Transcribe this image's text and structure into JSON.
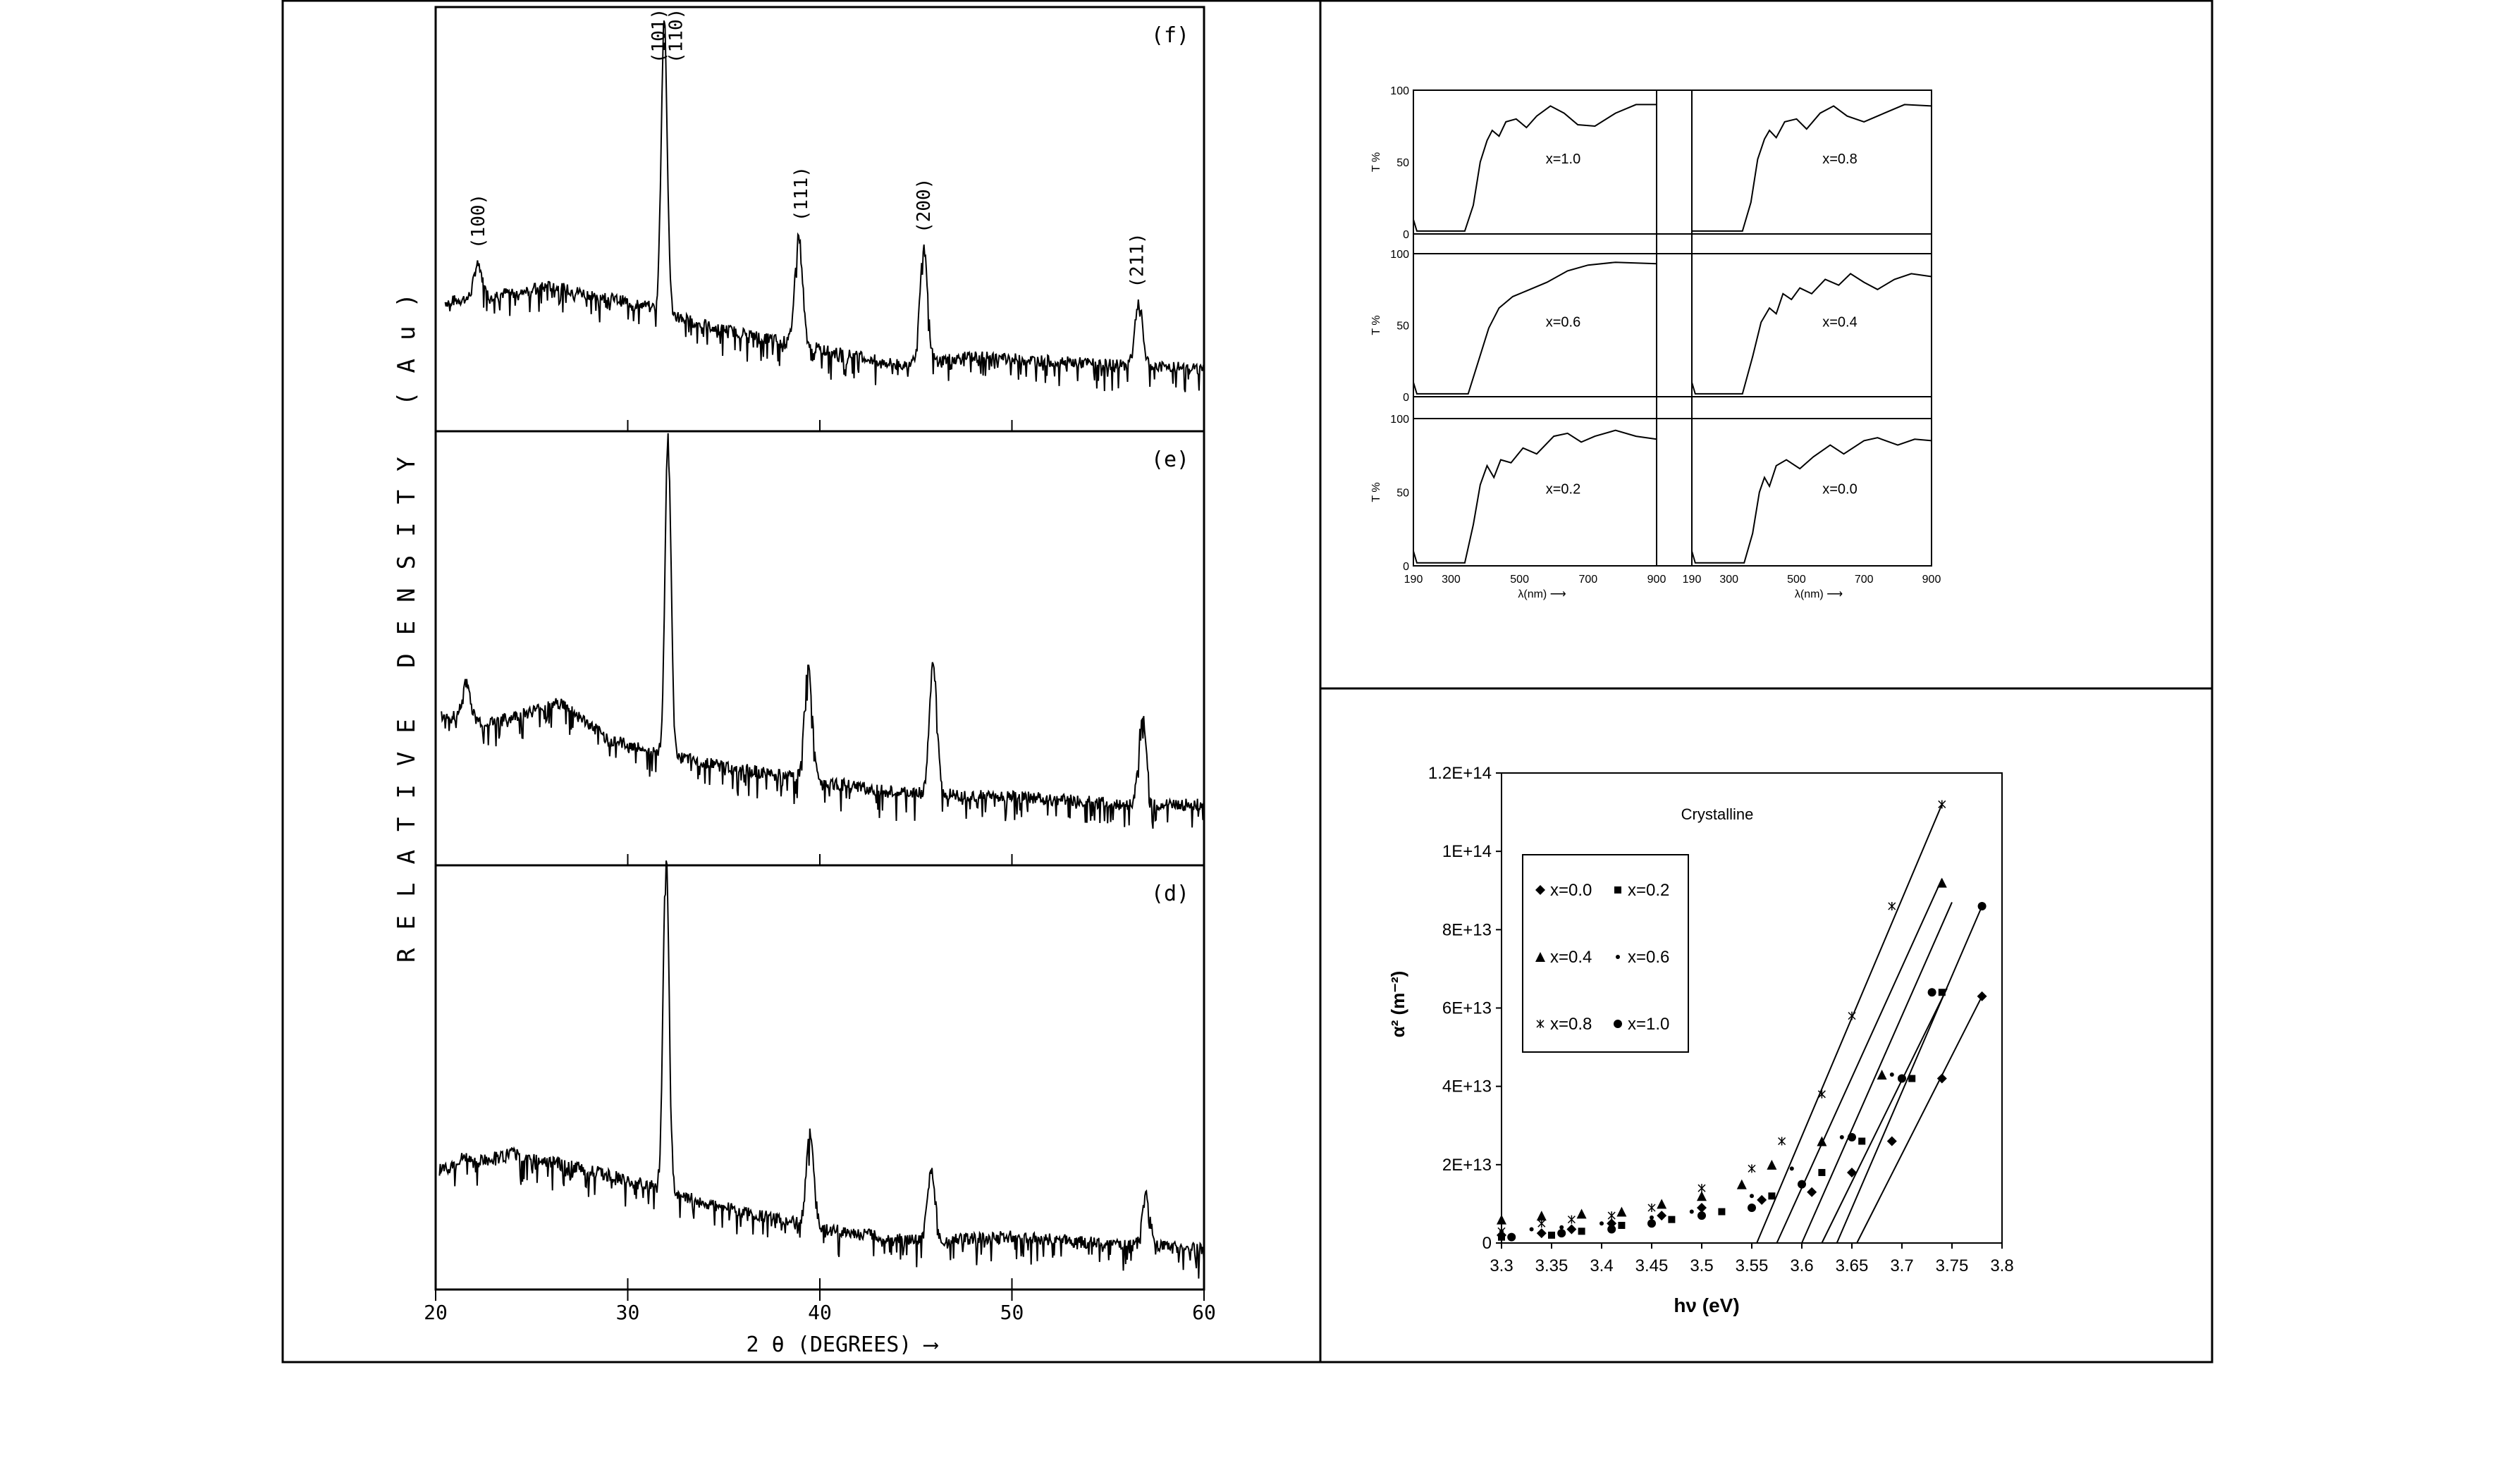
{
  "chart_data": [
    {
      "type": "line",
      "panel": "left",
      "xlabel": "2 θ (DEGREES) ⟶",
      "ylabel": "RELATIVE  DENSITY  (Au)",
      "xlim": [
        20,
        60
      ],
      "x_ticks": [
        "20",
        "30",
        "40",
        "50",
        "60"
      ],
      "y_ticks": [],
      "grid": false,
      "series": [
        {
          "name": "(f)",
          "peak_labels": [
            {
              "label": "(100)",
              "x": 22.2
            },
            {
              "label": "(101)",
              "x": 31.6
            },
            {
              "label": "(110)",
              "x": 32.5
            },
            {
              "label": "(111)",
              "x": 39.0
            },
            {
              "label": "(200)",
              "x": 45.4
            },
            {
              "label": "(211)",
              "x": 56.5
            }
          ],
          "peaks": [
            {
              "x": 22.2,
              "y": 0.38
            },
            {
              "x": 31.9,
              "y": 1.0
            },
            {
              "x": 38.9,
              "y": 0.45
            },
            {
              "x": 45.4,
              "y": 0.42
            },
            {
              "x": 56.6,
              "y": 0.28
            }
          ],
          "background": [
            [
              20.5,
              0.28
            ],
            [
              26,
              0.32
            ],
            [
              31,
              0.27
            ],
            [
              34,
              0.22
            ],
            [
              40,
              0.16
            ],
            [
              44,
              0.12
            ],
            [
              48,
              0.14
            ],
            [
              55,
              0.12
            ],
            [
              60,
              0.11
            ]
          ]
        },
        {
          "name": "(e)",
          "peak_labels": [],
          "peaks": [
            {
              "x": 21.6,
              "y": 0.4
            },
            {
              "x": 32.1,
              "y": 1.0
            },
            {
              "x": 39.4,
              "y": 0.44
            },
            {
              "x": 45.9,
              "y": 0.44
            },
            {
              "x": 56.8,
              "y": 0.32
            }
          ],
          "background": [
            [
              20.3,
              0.32
            ],
            [
              23,
              0.3
            ],
            [
              26.5,
              0.35
            ],
            [
              29,
              0.26
            ],
            [
              32,
              0.22
            ],
            [
              38,
              0.17
            ],
            [
              44,
              0.13
            ],
            [
              50,
              0.12
            ],
            [
              56,
              0.1
            ],
            [
              60,
              0.1
            ]
          ]
        },
        {
          "name": "(d)",
          "peak_labels": [],
          "peaks": [
            {
              "x": 21.5,
              "y": 0.28
            },
            {
              "x": 32.0,
              "y": 1.0
            },
            {
              "x": 39.5,
              "y": 0.33
            },
            {
              "x": 45.8,
              "y": 0.24
            },
            {
              "x": 57.0,
              "y": 0.18
            }
          ],
          "background": [
            [
              20.2,
              0.24
            ],
            [
              24,
              0.28
            ],
            [
              28,
              0.24
            ],
            [
              31.5,
              0.2
            ],
            [
              34,
              0.16
            ],
            [
              40,
              0.1
            ],
            [
              45,
              0.07
            ],
            [
              50,
              0.08
            ],
            [
              56,
              0.06
            ],
            [
              60,
              0.05
            ]
          ]
        }
      ]
    },
    {
      "type": "line",
      "panel": "top-right",
      "xlabel": "λ(nm) ⟶",
      "ylabel": "T %",
      "xlim": [
        190,
        900
      ],
      "ylim": [
        0,
        100
      ],
      "x_ticks": [
        "190",
        "300",
        "500",
        "700",
        "900"
      ],
      "y_ticks": [
        "0",
        "50",
        "100"
      ],
      "grid": false,
      "subplots": [
        {
          "name": "x=1.0",
          "points": [
            [
              190,
              10
            ],
            [
              200,
              2
            ],
            [
              340,
              2
            ],
            [
              365,
              20
            ],
            [
              385,
              50
            ],
            [
              405,
              65
            ],
            [
              420,
              72
            ],
            [
              440,
              68
            ],
            [
              460,
              78
            ],
            [
              490,
              80
            ],
            [
              520,
              74
            ],
            [
              550,
              82
            ],
            [
              590,
              89
            ],
            [
              630,
              84
            ],
            [
              670,
              76
            ],
            [
              720,
              75
            ],
            [
              780,
              84
            ],
            [
              840,
              90
            ],
            [
              900,
              90
            ]
          ]
        },
        {
          "name": "x=0.8",
          "points": [
            [
              190,
              2
            ],
            [
              340,
              2
            ],
            [
              365,
              22
            ],
            [
              385,
              52
            ],
            [
              405,
              66
            ],
            [
              420,
              72
            ],
            [
              440,
              67
            ],
            [
              465,
              78
            ],
            [
              500,
              80
            ],
            [
              530,
              73
            ],
            [
              570,
              84
            ],
            [
              610,
              89
            ],
            [
              650,
              82
            ],
            [
              700,
              78
            ],
            [
              760,
              84
            ],
            [
              820,
              90
            ],
            [
              900,
              89
            ]
          ]
        },
        {
          "name": "x=0.6",
          "points": [
            [
              190,
              10
            ],
            [
              200,
              2
            ],
            [
              350,
              2
            ],
            [
              380,
              25
            ],
            [
              410,
              48
            ],
            [
              440,
              62
            ],
            [
              480,
              70
            ],
            [
              520,
              74
            ],
            [
              580,
              80
            ],
            [
              640,
              88
            ],
            [
              700,
              92
            ],
            [
              780,
              94
            ],
            [
              900,
              93
            ]
          ]
        },
        {
          "name": "x=0.4",
          "points": [
            [
              190,
              10
            ],
            [
              200,
              2
            ],
            [
              340,
              2
            ],
            [
              370,
              28
            ],
            [
              395,
              52
            ],
            [
              420,
              62
            ],
            [
              440,
              58
            ],
            [
              460,
              72
            ],
            [
              485,
              68
            ],
            [
              510,
              76
            ],
            [
              545,
              72
            ],
            [
              585,
              82
            ],
            [
              625,
              78
            ],
            [
              660,
              86
            ],
            [
              700,
              80
            ],
            [
              740,
              75
            ],
            [
              790,
              82
            ],
            [
              840,
              86
            ],
            [
              900,
              84
            ]
          ]
        },
        {
          "name": "x=0.2",
          "points": [
            [
              190,
              10
            ],
            [
              200,
              2
            ],
            [
              340,
              2
            ],
            [
              365,
              28
            ],
            [
              385,
              55
            ],
            [
              405,
              68
            ],
            [
              425,
              60
            ],
            [
              445,
              72
            ],
            [
              475,
              70
            ],
            [
              510,
              80
            ],
            [
              550,
              76
            ],
            [
              600,
              88
            ],
            [
              640,
              90
            ],
            [
              680,
              84
            ],
            [
              720,
              88
            ],
            [
              780,
              92
            ],
            [
              840,
              88
            ],
            [
              900,
              86
            ]
          ]
        },
        {
          "name": "x=0.0",
          "points": [
            [
              190,
              10
            ],
            [
              200,
              2
            ],
            [
              345,
              2
            ],
            [
              370,
              22
            ],
            [
              390,
              50
            ],
            [
              405,
              60
            ],
            [
              420,
              54
            ],
            [
              440,
              68
            ],
            [
              470,
              72
            ],
            [
              510,
              66
            ],
            [
              550,
              74
            ],
            [
              600,
              82
            ],
            [
              640,
              76
            ],
            [
              700,
              85
            ],
            [
              740,
              87
            ],
            [
              800,
              82
            ],
            [
              850,
              86
            ],
            [
              900,
              85
            ]
          ]
        }
      ]
    },
    {
      "type": "scatter",
      "panel": "bottom-right",
      "title": "Crystalline",
      "xlabel": "hν (eV)",
      "ylabel": "α² (m⁻²)",
      "xlim": [
        3.3,
        3.8
      ],
      "ylim": [
        0,
        120000000000000.0
      ],
      "x_ticks": [
        "3.3",
        "3.35",
        "3.4",
        "3.45",
        "3.5",
        "3.55",
        "3.6",
        "3.65",
        "3.7",
        "3.75",
        "3.8"
      ],
      "y_ticks": [
        "0",
        "2E+13",
        "4E+13",
        "6E+13",
        "8E+13",
        "1E+14",
        "1.2E+14"
      ],
      "legend_position": "upper-left",
      "grid": false,
      "series": [
        {
          "name": "x=0.0",
          "marker": "diamond",
          "points": [
            [
              3.3,
              2000000000000.0
            ],
            [
              3.34,
              2500000000000.0
            ],
            [
              3.37,
              3500000000000.0
            ],
            [
              3.41,
              5000000000000.0
            ],
            [
              3.46,
              7000000000000.0
            ],
            [
              3.5,
              9000000000000.0
            ],
            [
              3.56,
              11000000000000.0
            ],
            [
              3.61,
              13000000000000.0
            ],
            [
              3.65,
              18000000000000.0
            ],
            [
              3.69,
              26000000000000.0
            ],
            [
              3.74,
              42000000000000.0
            ],
            [
              3.78,
              63000000000000.0
            ]
          ],
          "fit": [
            [
              3.655,
              0
            ],
            [
              3.78,
              63000000000000.0
            ]
          ]
        },
        {
          "name": "x=0.2",
          "marker": "square",
          "points": [
            [
              3.3,
              1500000000000.0
            ],
            [
              3.35,
              2000000000000.0
            ],
            [
              3.38,
              3000000000000.0
            ],
            [
              3.42,
              4500000000000.0
            ],
            [
              3.47,
              6000000000000.0
            ],
            [
              3.52,
              8000000000000.0
            ],
            [
              3.57,
              12000000000000.0
            ],
            [
              3.62,
              18000000000000.0
            ],
            [
              3.66,
              26000000000000.0
            ],
            [
              3.71,
              42000000000000.0
            ],
            [
              3.74,
              64000000000000.0
            ]
          ],
          "fit": [
            [
              3.62,
              0
            ],
            [
              3.745,
              65000000000000.0
            ]
          ]
        },
        {
          "name": "x=0.4",
          "marker": "triangle",
          "points": [
            [
              3.3,
              6000000000000.0
            ],
            [
              3.34,
              7000000000000.0
            ],
            [
              3.38,
              7500000000000.0
            ],
            [
              3.42,
              8000000000000.0
            ],
            [
              3.46,
              10000000000000.0
            ],
            [
              3.5,
              12000000000000.0
            ],
            [
              3.54,
              15000000000000.0
            ],
            [
              3.57,
              20000000000000.0
            ],
            [
              3.62,
              26000000000000.0
            ],
            [
              3.68,
              43000000000000.0
            ],
            [
              3.74,
              92000000000000.0
            ]
          ],
          "fit": [
            [
              3.575,
              0
            ],
            [
              3.74,
              93000000000000.0
            ]
          ]
        },
        {
          "name": "x=0.6",
          "marker": "circle-small",
          "points": [
            [
              3.3,
              3000000000000.0
            ],
            [
              3.33,
              3500000000000.0
            ],
            [
              3.36,
              4000000000000.0
            ],
            [
              3.4,
              5000000000000.0
            ],
            [
              3.45,
              6500000000000.0
            ],
            [
              3.49,
              8000000000000.0
            ],
            [
              3.55,
              12000000000000.0
            ],
            [
              3.59,
              19000000000000.0
            ],
            [
              3.64,
              27000000000000.0
            ],
            [
              3.69,
              43000000000000.0
            ],
            [
              3.73,
              64000000000000.0
            ]
          ],
          "fit": [
            [
              3.6,
              0
            ],
            [
              3.75,
              87000000000000.0
            ]
          ]
        },
        {
          "name": "x=0.8",
          "marker": "asterisk",
          "points": [
            [
              3.3,
              3000000000000.0
            ],
            [
              3.34,
              5000000000000.0
            ],
            [
              3.37,
              6000000000000.0
            ],
            [
              3.41,
              7000000000000.0
            ],
            [
              3.45,
              9000000000000.0
            ],
            [
              3.5,
              14000000000000.0
            ],
            [
              3.55,
              19000000000000.0
            ],
            [
              3.58,
              26000000000000.0
            ],
            [
              3.62,
              38000000000000.0
            ],
            [
              3.65,
              58000000000000.0
            ],
            [
              3.69,
              86000000000000.0
            ],
            [
              3.74,
              112000000000000.0
            ]
          ],
          "fit": [
            [
              3.555,
              0
            ],
            [
              3.74,
              112000000000000.0
            ]
          ]
        },
        {
          "name": "x=1.0",
          "marker": "circle",
          "points": [
            [
              3.31,
              1500000000000.0
            ],
            [
              3.36,
              2500000000000.0
            ],
            [
              3.41,
              3500000000000.0
            ],
            [
              3.45,
              5000000000000.0
            ],
            [
              3.5,
              7000000000000.0
            ],
            [
              3.55,
              9000000000000.0
            ],
            [
              3.6,
              15000000000000.0
            ],
            [
              3.65,
              27000000000000.0
            ],
            [
              3.7,
              42000000000000.0
            ],
            [
              3.73,
              64000000000000.0
            ],
            [
              3.78,
              86000000000000.0
            ]
          ],
          "fit": [
            [
              3.635,
              0
            ],
            [
              3.78,
              86000000000000.0
            ]
          ]
        }
      ]
    }
  ]
}
